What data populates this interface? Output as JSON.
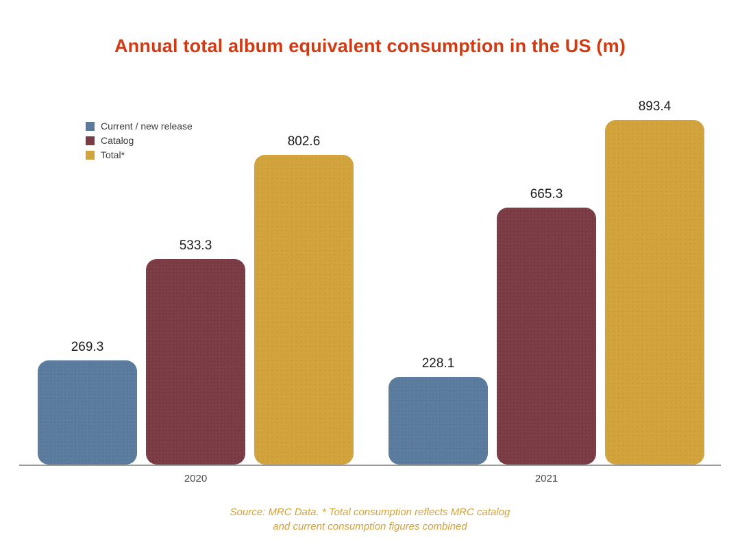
{
  "title": {
    "text": "Annual total album equivalent consumption in the US (m)",
    "color": "#d43a12"
  },
  "chart_data": {
    "type": "bar",
    "title": "Annual total album equivalent consumption in the US (m)",
    "categories": [
      "2020",
      "2021"
    ],
    "series": [
      {
        "name": "Current / new release",
        "color": "#5a7b9d",
        "values": [
          269.3,
          228.1
        ]
      },
      {
        "name": "Catalog",
        "color": "#7b3b44",
        "values": [
          533.3,
          665.3
        ]
      },
      {
        "name": "Total*",
        "color": "#d2a23b",
        "values": [
          802.6,
          893.4
        ]
      }
    ],
    "ylim": [
      0,
      900
    ],
    "grid": false,
    "legend_position": "top-left",
    "value_labels": true,
    "value_label_color": "#1b1b1b",
    "axis_line_color": "#9b9b9b",
    "category_label_color": "#4a4a4a"
  },
  "source_note": {
    "line1": "Source: MRC Data. * Total consumption reflects MRC catalog",
    "line2": "and current consumption figures combined",
    "color": "#d2a23b"
  }
}
